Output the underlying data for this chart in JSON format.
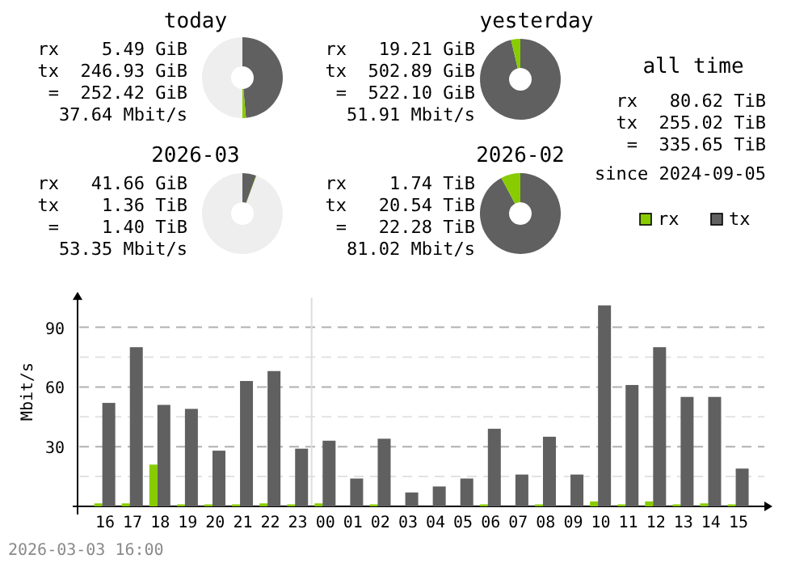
{
  "chart_data": [
    {
      "type": "donut",
      "title": "today",
      "categories": [
        null,
        null,
        null
      ],
      "values": [
        48.6,
        1.4,
        50
      ],
      "colors": [
        "#606060",
        "#88cc00",
        "#eeeeee"
      ],
      "annotations": [
        "rx    5.49 GiB",
        "tx  246.93 GiB",
        "=  252.42 GiB",
        "37.64 Mbit/s"
      ]
    },
    {
      "type": "donut",
      "title": "yesterday",
      "categories": [
        null,
        null
      ],
      "values": [
        96.3,
        3.7
      ],
      "colors": [
        "#606060",
        "#88cc00"
      ],
      "annotations": [
        "rx   19.21 GiB",
        "tx  502.89 GiB",
        "=  522.10 GiB",
        "51.91 Mbit/s"
      ]
    },
    {
      "type": "donut",
      "title": "2026-03",
      "categories": [
        null,
        null,
        null
      ],
      "values": [
        5.5,
        0.2,
        94.3
      ],
      "colors": [
        "#606060",
        "#88cc00",
        "#eeeeee"
      ],
      "annotations": [
        "rx   41.66 GiB",
        "tx    1.36 TiB",
        "=    1.40 TiB",
        "53.35 Mbit/s"
      ]
    },
    {
      "type": "donut",
      "title": "2026-02",
      "categories": [
        null,
        null
      ],
      "values": [
        92.2,
        7.8
      ],
      "colors": [
        "#606060",
        "#88cc00"
      ],
      "annotations": [
        "rx    1.74 TiB",
        "tx   20.54 TiB",
        "=   22.28 TiB",
        "81.02 Mbit/s"
      ]
    },
    {
      "type": "other",
      "title": "all time",
      "annotations": [
        "rx   80.62 TiB",
        "tx  255.02 TiB",
        "=  335.65 TiB",
        "since 2024-09-05"
      ]
    },
    {
      "type": "bar",
      "ylabel": "Mbit/s",
      "categories": [
        "16",
        "17",
        "18",
        "19",
        "20",
        "21",
        "22",
        "23",
        "00",
        "01",
        "02",
        "03",
        "04",
        "05",
        "06",
        "07",
        "08",
        "09",
        "10",
        "11",
        "12",
        "13",
        "14",
        "15"
      ],
      "series": [
        {
          "name": "rx",
          "color": "#88cc00",
          "values": [
            1.5,
            1.5,
            21,
            1,
            1,
            1,
            1.5,
            1,
            1.5,
            0,
            1,
            0,
            0,
            0,
            1,
            0,
            1,
            0,
            2.5,
            1,
            2.5,
            1,
            1.5,
            1
          ]
        },
        {
          "name": "tx",
          "color": "#606060",
          "values": [
            52,
            80,
            51,
            49,
            28,
            63,
            68,
            29,
            33,
            14,
            34,
            7,
            10,
            14,
            39,
            16,
            35,
            16,
            101,
            61,
            80,
            55,
            55,
            19
          ]
        }
      ],
      "ylim": [
        0,
        107
      ],
      "yticks": [
        {
          "value": 15,
          "label": null
        },
        30,
        {
          "value": 45,
          "label": null
        },
        60,
        {
          "value": 75,
          "label": null
        },
        90
      ],
      "grid": "y",
      "legend": "top right",
      "ref_lines": [
        {
          "axis": "x",
          "value": "00",
          "color": "#dddddd"
        }
      ],
      "annotations": [
        "2026-03-03 16:00"
      ]
    }
  ]
}
